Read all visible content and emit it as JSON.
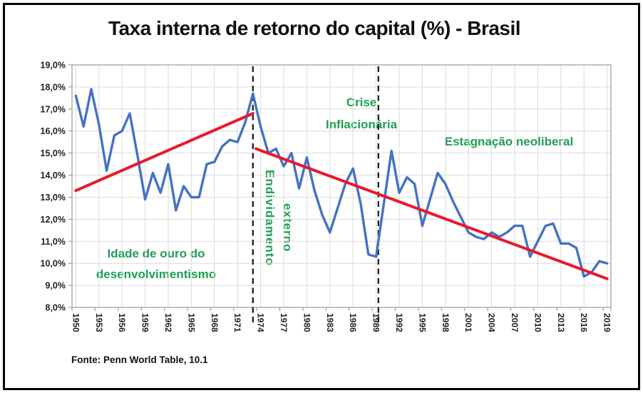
{
  "title": "Taxa interna de retorno do capital (%) - Brasil",
  "source": "Fonte: Penn World Table, 10.1",
  "annotations": {
    "golden_age_line1": "Idade de ouro do",
    "golden_age_line2": "desenvolvimentismo",
    "debt_line1": "Endividamento",
    "debt_line2": "externo",
    "inflation_line1": "Crise",
    "inflation_line2": "Inflacionária",
    "stagnation": "Estagnação neoliberal"
  },
  "chart_data": {
    "type": "line",
    "title": "Taxa interna de retorno do capital (%) - Brasil",
    "xlabel": "",
    "ylabel": "",
    "ylim": [
      8,
      19
    ],
    "grid": true,
    "legend_position": "none",
    "y_tick_labels": [
      "19,0%",
      "18,0%",
      "17,0%",
      "16,0%",
      "15,0%",
      "14,0%",
      "13,0%",
      "12,0%",
      "11,0%",
      "10,0%",
      "9,0%",
      "8,0%"
    ],
    "x_tick_labels": [
      "1950",
      "1953",
      "1956",
      "1959",
      "1962",
      "1965",
      "1968",
      "1971",
      "1974",
      "1977",
      "1980",
      "1983",
      "1986",
      "1989",
      "1992",
      "1995",
      "1998",
      "2001",
      "2004",
      "2007",
      "2010",
      "2013",
      "2016",
      "2019"
    ],
    "years": [
      1950,
      1951,
      1952,
      1953,
      1954,
      1955,
      1956,
      1957,
      1958,
      1959,
      1960,
      1961,
      1962,
      1963,
      1964,
      1965,
      1966,
      1967,
      1968,
      1969,
      1970,
      1971,
      1972,
      1973,
      1974,
      1975,
      1976,
      1977,
      1978,
      1979,
      1980,
      1981,
      1982,
      1983,
      1984,
      1985,
      1986,
      1987,
      1988,
      1989,
      1990,
      1991,
      1992,
      1993,
      1994,
      1995,
      1996,
      1997,
      1998,
      1999,
      2000,
      2001,
      2002,
      2003,
      2004,
      2005,
      2006,
      2007,
      2008,
      2009,
      2010,
      2011,
      2012,
      2013,
      2014,
      2015,
      2016,
      2017,
      2018,
      2019
    ],
    "values": [
      17.6,
      16.2,
      17.9,
      16.3,
      14.2,
      15.8,
      16.0,
      16.8,
      14.9,
      12.9,
      14.1,
      13.2,
      14.5,
      12.4,
      13.5,
      13.0,
      13.0,
      14.5,
      14.6,
      15.3,
      15.6,
      15.5,
      16.4,
      17.7,
      16.2,
      15.0,
      15.2,
      14.4,
      15.0,
      13.4,
      14.8,
      13.3,
      12.2,
      11.4,
      12.5,
      13.6,
      14.3,
      12.7,
      10.4,
      10.3,
      12.7,
      15.1,
      13.2,
      13.9,
      13.6,
      11.7,
      12.9,
      14.1,
      13.6,
      12.8,
      12.1,
      11.4,
      11.2,
      11.1,
      11.4,
      11.2,
      11.4,
      11.7,
      11.7,
      10.3,
      11.0,
      11.7,
      11.8,
      10.9,
      10.9,
      10.7,
      9.4,
      9.6,
      10.1,
      10.0
    ],
    "trendlines": [
      {
        "name": "trend-line-ascending",
        "from_year": 1950,
        "from_value": 13.3,
        "to_year": 1973,
        "to_value": 16.8
      },
      {
        "name": "trend-line-descending",
        "from_year": 1973.4,
        "from_value": 15.2,
        "to_year": 2019,
        "to_value": 9.3
      }
    ],
    "dividers": [
      {
        "name": "divider-1973",
        "year": 1973
      },
      {
        "name": "divider-1990",
        "year": 1989.3
      }
    ],
    "colors": {
      "series": "#4472c4",
      "trend": "#e8192c",
      "annotations": "#1fa052",
      "divider": "#1f1f1f"
    }
  }
}
